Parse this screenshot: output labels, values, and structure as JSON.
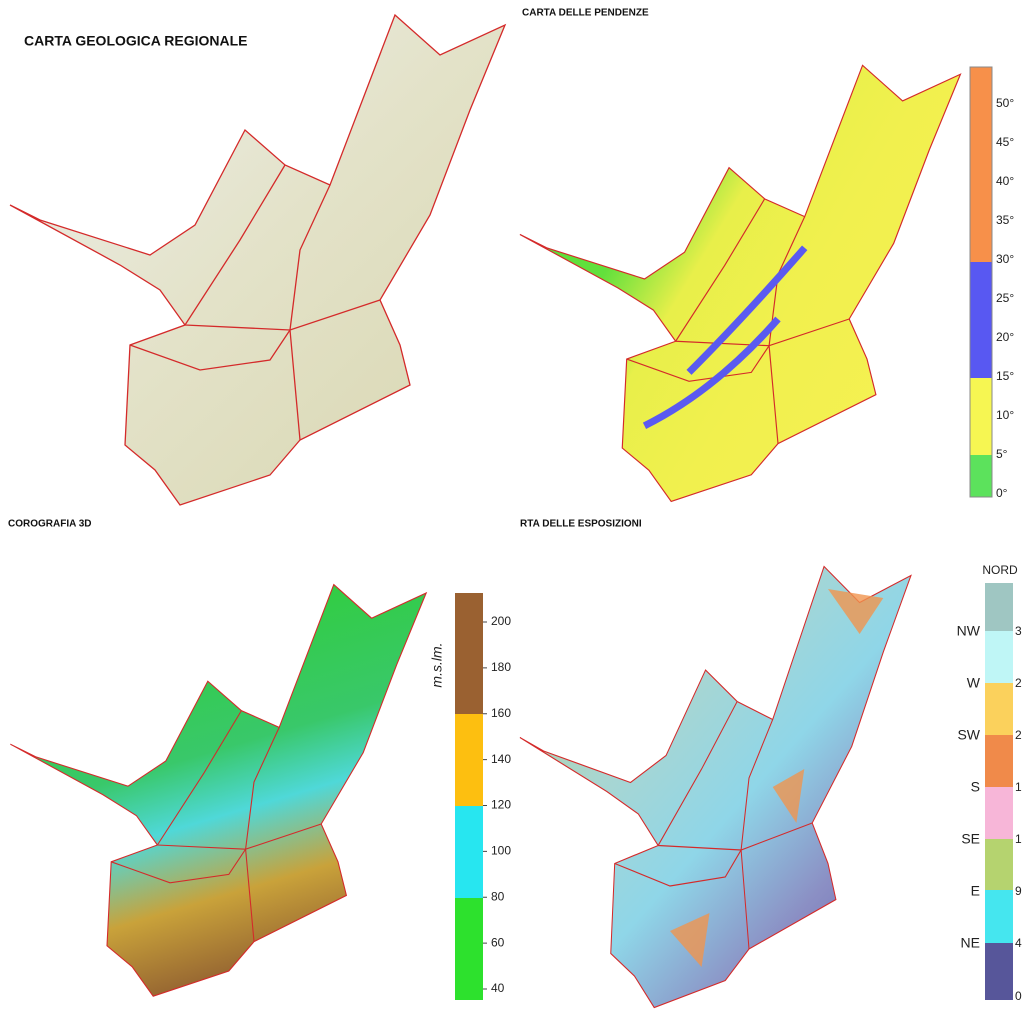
{
  "panels": [
    {
      "title": "CARTA GEOLOGICA REGIONALE"
    },
    {
      "title": "CARTA DELLE PENDENZE",
      "legend": {
        "labels": [
          "50°",
          "45°",
          "40°",
          "35°",
          "30°",
          "25°",
          "20°",
          "15°",
          "10°",
          "5°",
          "0°"
        ]
      }
    },
    {
      "title": "COROGRAFIA 3D",
      "legend": {
        "unit": "m.s.lm.",
        "ticks": [
          200,
          180,
          160,
          140,
          120,
          100,
          80,
          60,
          40
        ]
      }
    },
    {
      "title": "RTA DELLE ESPOSIZIONI",
      "legend": {
        "header": "NORD",
        "directions": [
          "NW",
          "W",
          "SW",
          "S",
          "SE",
          "E",
          "NE"
        ],
        "values": [
          3,
          2,
          2,
          1,
          1,
          9,
          4,
          0
        ]
      }
    }
  ]
}
